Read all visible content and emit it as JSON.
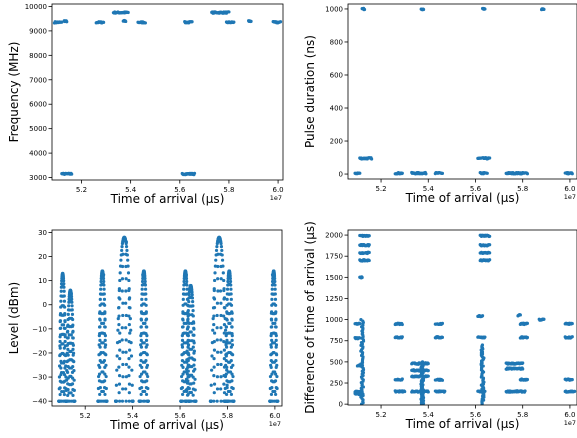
{
  "chart_data": [
    {
      "type": "scatter",
      "xlabel": "Time of arrival (µs)",
      "ylabel": "Frequency (MHz)",
      "x_offset_label": "1e7",
      "xlim": [
        5.08,
        6.02
      ],
      "ylim": [
        2900,
        10100
      ],
      "x_ticks": [
        5.2,
        5.4,
        5.6,
        5.8,
        6.0
      ],
      "x_tick_labels": [
        "5.2",
        "5.4",
        "5.6",
        "5.8",
        "6.0"
      ],
      "y_ticks": [
        3000,
        4000,
        5000,
        6000,
        7000,
        8000,
        9000,
        10000
      ],
      "y_tick_labels": [
        "3000",
        "4000",
        "5000",
        "6000",
        "7000",
        "8000",
        "9000",
        "10000"
      ],
      "color": "#1f77b4",
      "clusters": [
        {
          "x_range": [
            5.09,
            5.12
          ],
          "y": 9350
        },
        {
          "x_range": [
            5.13,
            5.14
          ],
          "y": 9400
        },
        {
          "x_range": [
            5.12,
            5.16
          ],
          "y": 3150
        },
        {
          "x_range": [
            5.26,
            5.29
          ],
          "y": 9350
        },
        {
          "x_range": [
            5.33,
            5.39
          ],
          "y": 9750
        },
        {
          "x_range": [
            5.37,
            5.38
          ],
          "y": 9400
        },
        {
          "x_range": [
            5.43,
            5.46
          ],
          "y": 9350
        },
        {
          "x_range": [
            5.62,
            5.65
          ],
          "y": 9350
        },
        {
          "x_range": [
            5.61,
            5.66
          ],
          "y": 3150
        },
        {
          "x_range": [
            5.73,
            5.8
          ],
          "y": 9750
        },
        {
          "x_range": [
            5.79,
            5.82
          ],
          "y": 9350
        },
        {
          "x_range": [
            5.88,
            5.89
          ],
          "y": 9400
        },
        {
          "x_range": [
            5.98,
            6.01
          ],
          "y": 9350
        }
      ]
    },
    {
      "type": "scatter",
      "xlabel": "Time of arrival (µs)",
      "ylabel": "Pulse duration (ns)",
      "x_offset_label": "1e7",
      "xlim": [
        5.06,
        6.03
      ],
      "ylim": [
        -30,
        1030
      ],
      "x_ticks": [
        5.2,
        5.4,
        5.6,
        5.8,
        6.0
      ],
      "x_tick_labels": [
        "5.2",
        "5.4",
        "5.6",
        "5.8",
        "6.0"
      ],
      "y_ticks": [
        0,
        200,
        400,
        600,
        800,
        1000
      ],
      "y_tick_labels": [
        "0",
        "200",
        "400",
        "600",
        "800",
        "1000"
      ],
      "color": "#1f77b4",
      "clusters": [
        {
          "x_range": [
            5.09,
            5.11
          ],
          "y": 5
        },
        {
          "x_range": [
            5.11,
            5.16
          ],
          "y": 95
        },
        {
          "x_range": [
            5.12,
            5.13
          ],
          "y": 1000
        },
        {
          "x_range": [
            5.26,
            5.29
          ],
          "y": 5
        },
        {
          "x_range": [
            5.33,
            5.39
          ],
          "y": 5
        },
        {
          "x_range": [
            5.37,
            5.38
          ],
          "y": 1000
        },
        {
          "x_range": [
            5.43,
            5.46
          ],
          "y": 5
        },
        {
          "x_range": [
            5.61,
            5.66
          ],
          "y": 95
        },
        {
          "x_range": [
            5.62,
            5.65
          ],
          "y": 5
        },
        {
          "x_range": [
            5.63,
            5.64
          ],
          "y": 1000
        },
        {
          "x_range": [
            5.73,
            5.8
          ],
          "y": 5
        },
        {
          "x_range": [
            5.79,
            5.82
          ],
          "y": 5
        },
        {
          "x_range": [
            5.88,
            5.89
          ],
          "y": 1000
        },
        {
          "x_range": [
            5.98,
            6.01
          ],
          "y": 5
        }
      ]
    },
    {
      "type": "scatter",
      "xlabel": "Time of arrival (µs)",
      "ylabel": "Level (dBm)",
      "x_offset_label": "1e7",
      "xlim": [
        5.06,
        6.03
      ],
      "ylim": [
        -42,
        31
      ],
      "x_ticks": [
        5.2,
        5.4,
        5.6,
        5.8,
        6.0
      ],
      "x_tick_labels": [
        "5.2",
        "5.4",
        "5.6",
        "5.8",
        "6.0"
      ],
      "y_ticks": [
        -40,
        -30,
        -20,
        -10,
        0,
        10,
        20,
        30
      ],
      "y_tick_labels": [
        "−40",
        "−30",
        "−20",
        "−10",
        "0",
        "10",
        "20",
        "30"
      ],
      "color": "#1f77b4",
      "arcs": [
        {
          "x_start": 5.09,
          "x_end": 5.12,
          "peak": 13
        },
        {
          "x_start": 5.12,
          "x_end": 5.155,
          "peak": 6
        },
        {
          "x_start": 5.255,
          "x_end": 5.29,
          "peak": 14
        },
        {
          "x_start": 5.33,
          "x_end": 5.4,
          "peak": 28
        },
        {
          "x_start": 5.43,
          "x_end": 5.465,
          "peak": 14
        },
        {
          "x_start": 5.605,
          "x_end": 5.64,
          "peak": 14
        },
        {
          "x_start": 5.625,
          "x_end": 5.665,
          "peak": 8
        },
        {
          "x_start": 5.73,
          "x_end": 5.8,
          "peak": 28
        },
        {
          "x_start": 5.79,
          "x_end": 5.825,
          "peak": 14
        },
        {
          "x_start": 5.98,
          "x_end": 6.01,
          "peak": 14
        }
      ],
      "y_floor": -40
    },
    {
      "type": "scatter",
      "xlabel": "Time of arrival (µs)",
      "ylabel": "Difference of time of arrival (µs)",
      "x_offset_label": "1e7",
      "xlim": [
        5.06,
        6.03
      ],
      "ylim": [
        -10,
        2060
      ],
      "x_ticks": [
        5.2,
        5.4,
        5.6,
        5.8,
        6.0
      ],
      "x_tick_labels": [
        "5.2",
        "5.4",
        "5.6",
        "5.8",
        "6.0"
      ],
      "y_ticks": [
        0,
        250,
        500,
        750,
        1000,
        1250,
        1500,
        1750,
        2000
      ],
      "y_tick_labels": [
        "0",
        "250",
        "500",
        "750",
        "1000",
        "1250",
        "1500",
        "1750",
        "2000"
      ],
      "color": "#1f77b4",
      "clusters": [
        {
          "x_range": [
            5.09,
            5.11
          ],
          "y": 950
        },
        {
          "x_range": [
            5.09,
            5.11
          ],
          "y": 780
        },
        {
          "x_range": [
            5.1,
            5.12
          ],
          "y": 460
        },
        {
          "x_range": [
            5.09,
            5.12
          ],
          "y": 150
        },
        {
          "x_range": [
            5.09,
            5.12
          ],
          "y": 120
        },
        {
          "x_range": [
            5.11,
            5.12
          ],
          "y": 1500
        },
        {
          "x_range": [
            5.11,
            5.15
          ],
          "y": 1990
        },
        {
          "x_range": [
            5.11,
            5.15
          ],
          "y": 1880
        },
        {
          "x_range": [
            5.11,
            5.15
          ],
          "y": 1790
        },
        {
          "x_range": [
            5.11,
            5.15
          ],
          "y": 1700
        },
        {
          "x_range": [
            5.26,
            5.29
          ],
          "y": 950
        },
        {
          "x_range": [
            5.26,
            5.29
          ],
          "y": 790
        },
        {
          "x_range": [
            5.26,
            5.29
          ],
          "y": 290
        },
        {
          "x_range": [
            5.26,
            5.3
          ],
          "y": 150
        },
        {
          "x_range": [
            5.33,
            5.4
          ],
          "y": 480
        },
        {
          "x_range": [
            5.33,
            5.4
          ],
          "y": 400
        },
        {
          "x_range": [
            5.33,
            5.4
          ],
          "y": 330
        },
        {
          "x_range": [
            5.33,
            5.4
          ],
          "y": 150
        },
        {
          "x_range": [
            5.43,
            5.46
          ],
          "y": 950
        },
        {
          "x_range": [
            5.43,
            5.46
          ],
          "y": 790
        },
        {
          "x_range": [
            5.43,
            5.46
          ],
          "y": 290
        },
        {
          "x_range": [
            5.43,
            5.47
          ],
          "y": 150
        },
        {
          "x_range": [
            5.62,
            5.66
          ],
          "y": 1990
        },
        {
          "x_range": [
            5.62,
            5.66
          ],
          "y": 1880
        },
        {
          "x_range": [
            5.62,
            5.66
          ],
          "y": 1790
        },
        {
          "x_range": [
            5.62,
            5.66
          ],
          "y": 1700
        },
        {
          "x_range": [
            5.61,
            5.63
          ],
          "y": 1040
        },
        {
          "x_range": [
            5.61,
            5.64
          ],
          "y": 790
        },
        {
          "x_range": [
            5.61,
            5.64
          ],
          "y": 150
        },
        {
          "x_range": [
            5.73,
            5.8
          ],
          "y": 480
        },
        {
          "x_range": [
            5.73,
            5.8
          ],
          "y": 420
        },
        {
          "x_range": [
            5.73,
            5.81
          ],
          "y": 150
        },
        {
          "x_range": [
            5.78,
            5.79
          ],
          "y": 1050
        },
        {
          "x_range": [
            5.79,
            5.82
          ],
          "y": 950
        },
        {
          "x_range": [
            5.79,
            5.82
          ],
          "y": 790
        },
        {
          "x_range": [
            5.79,
            5.82
          ],
          "y": 290
        },
        {
          "x_range": [
            5.87,
            5.89
          ],
          "y": 1000
        },
        {
          "x_range": [
            5.98,
            6.01
          ],
          "y": 950
        },
        {
          "x_range": [
            5.98,
            6.01
          ],
          "y": 790
        },
        {
          "x_range": [
            5.98,
            6.01
          ],
          "y": 290
        },
        {
          "x_range": [
            5.98,
            6.02
          ],
          "y": 150
        }
      ],
      "columns": [
        {
          "x": 5.12,
          "y_range": [
            0,
            1000
          ]
        },
        {
          "x": 5.375,
          "y_range": [
            0,
            500
          ]
        },
        {
          "x": 5.63,
          "y_range": [
            0,
            700
          ]
        }
      ]
    }
  ]
}
